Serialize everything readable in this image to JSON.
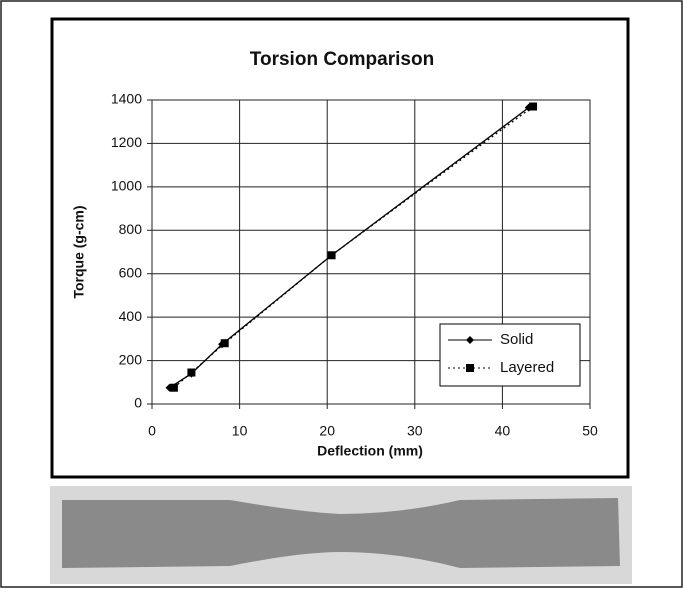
{
  "chart_data": {
    "type": "line",
    "title": "Torsion Comparison",
    "x_label": "Deflection (mm)",
    "y_label": "Torque (g-cm)",
    "xlim": [
      0,
      50
    ],
    "xticks": [
      0,
      10,
      20,
      30,
      40,
      50
    ],
    "ylim": [
      0,
      1400
    ],
    "yticks": [
      0,
      200,
      400,
      600,
      800,
      1000,
      1200,
      1400
    ],
    "grid": true,
    "legend": "lower right",
    "series": [
      {
        "name": "Solid",
        "color": "#000000",
        "style": "solid",
        "marker": "diamond",
        "x": [
          2,
          4.5,
          8,
          20.5,
          43
        ],
        "values": [
          75,
          140,
          275,
          685,
          1365
        ]
      },
      {
        "name": "Layered",
        "color": "#000000",
        "style": "dotted",
        "marker": "square",
        "x": [
          2.5,
          4.5,
          8.3,
          20.5,
          43.5
        ],
        "values": [
          75,
          145,
          280,
          685,
          1370
        ]
      }
    ]
  }
}
